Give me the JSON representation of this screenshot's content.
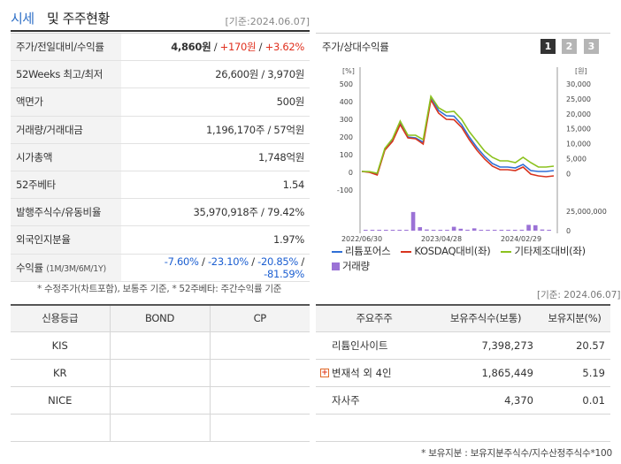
{
  "header": {
    "title_a": "시세",
    "title_b": "및 주주현황",
    "date": "[기준:2024.06.07]"
  },
  "info": [
    {
      "key": "주가/전일대비/수익률",
      "v1": "4,860원",
      "sep1": " / ",
      "v2": "+170원",
      "sep2": " / ",
      "v3": "+3.62%"
    },
    {
      "key": "52Weeks 최고/최저",
      "value": "26,600원 / 3,970원"
    },
    {
      "key": "액면가",
      "value": "500원"
    },
    {
      "key": "거래량/거래대금",
      "value": "1,196,170주 / 57억원"
    },
    {
      "key": "시가총액",
      "value": "1,748억원"
    },
    {
      "key": "52주베타",
      "value": "1.54"
    },
    {
      "key": "발행주식수/유동비율",
      "value": "35,970,918주 / 79.42%"
    },
    {
      "key": "외국인지분율",
      "value": "1.97%"
    },
    {
      "key": "수익률",
      "key_sub": "(1M/3M/6M/1Y)",
      "r1": "-7.60%",
      "r2": "-23.10%",
      "r3": "-20.85%",
      "r4": "-81.59%"
    }
  ],
  "notes": {
    "left": "* 수정주가(차트포함), 보통주 기준, * 52주베타: 주간수익률 기준",
    "right_date": "[기준: 2024.06.07]",
    "bottom": "* 보유지분 : 보유지분주식수/지수산정주식수*100"
  },
  "chart_panel": {
    "title": "주가/상대수익률",
    "pages": [
      "1",
      "2",
      "3"
    ],
    "colors": {
      "page_active": "#333333",
      "page_inactive": "#b5b5b5"
    }
  },
  "chart_data": {
    "type": "line",
    "left_axis_unit": "[%]",
    "right_axis_unit": "[원]",
    "left_ticks": [
      "500",
      "400",
      "300",
      "200",
      "100",
      "0",
      "-100"
    ],
    "right_ticks": [
      "30,000",
      "25,000",
      "20,000",
      "15,000",
      "10,000",
      "5,000",
      "0"
    ],
    "ylim_left": [
      -100,
      500
    ],
    "ylim_right": [
      0,
      30000
    ],
    "volume_tick": "25,000,000",
    "volume_ylim": [
      0,
      25000000
    ],
    "x_labels": [
      "2022/06/30",
      "2023/04/28",
      "2024/02/29"
    ],
    "series": [
      {
        "name": "리튬포어스",
        "color": "#2f6fd6",
        "values": [
          5,
          2,
          -10,
          130,
          180,
          280,
          200,
          195,
          170,
          425,
          350,
          320,
          318,
          270,
          200,
          140,
          90,
          50,
          30,
          30,
          25,
          45,
          10,
          5,
          5,
          10
        ]
      },
      {
        "name": "KOSDAQ대비(좌)",
        "color": "#d8341e",
        "values": [
          5,
          0,
          -15,
          125,
          175,
          270,
          195,
          190,
          160,
          410,
          335,
          300,
          298,
          255,
          185,
          125,
          75,
          35,
          15,
          15,
          10,
          30,
          -10,
          -20,
          -25,
          -20
        ]
      },
      {
        "name": "기타제조대비(좌)",
        "color": "#8cc21e",
        "values": [
          5,
          4,
          -5,
          135,
          190,
          290,
          210,
          210,
          185,
          430,
          365,
          340,
          345,
          300,
          230,
          175,
          120,
          85,
          65,
          65,
          55,
          85,
          55,
          30,
          30,
          35
        ]
      }
    ],
    "volume": {
      "name": "거래량",
      "color": "#9b72d6",
      "values": [
        300000,
        200000,
        150000,
        400000,
        200000,
        600000,
        350000,
        24000000,
        4500000,
        1500000,
        800000,
        400000,
        300000,
        5000000,
        2500000,
        1200000,
        3000000,
        800000,
        600000,
        400000,
        300000,
        700000,
        400000,
        1200000,
        7500000,
        7000000,
        1500000,
        600000
      ]
    }
  },
  "credit": {
    "headers": [
      "신용등급",
      "BOND",
      "CP"
    ],
    "rows": [
      [
        "KIS",
        "",
        ""
      ],
      [
        "KR",
        "",
        ""
      ],
      [
        "NICE",
        "",
        ""
      ],
      [
        "",
        "",
        ""
      ]
    ]
  },
  "holders": {
    "headers": [
      "주요주주",
      "보유주식수(보통)",
      "보유지분(%)"
    ],
    "rows": [
      {
        "name": "리튬인사이트",
        "shares": "7,398,273",
        "pct": "20.57",
        "expand": false
      },
      {
        "name": "변재석 외 4인",
        "shares": "1,865,449",
        "pct": "5.19",
        "expand": true
      },
      {
        "name": "자사주",
        "shares": "4,370",
        "pct": "0.01",
        "expand": false
      },
      {
        "name": "",
        "shares": "",
        "pct": "",
        "expand": false
      }
    ]
  }
}
